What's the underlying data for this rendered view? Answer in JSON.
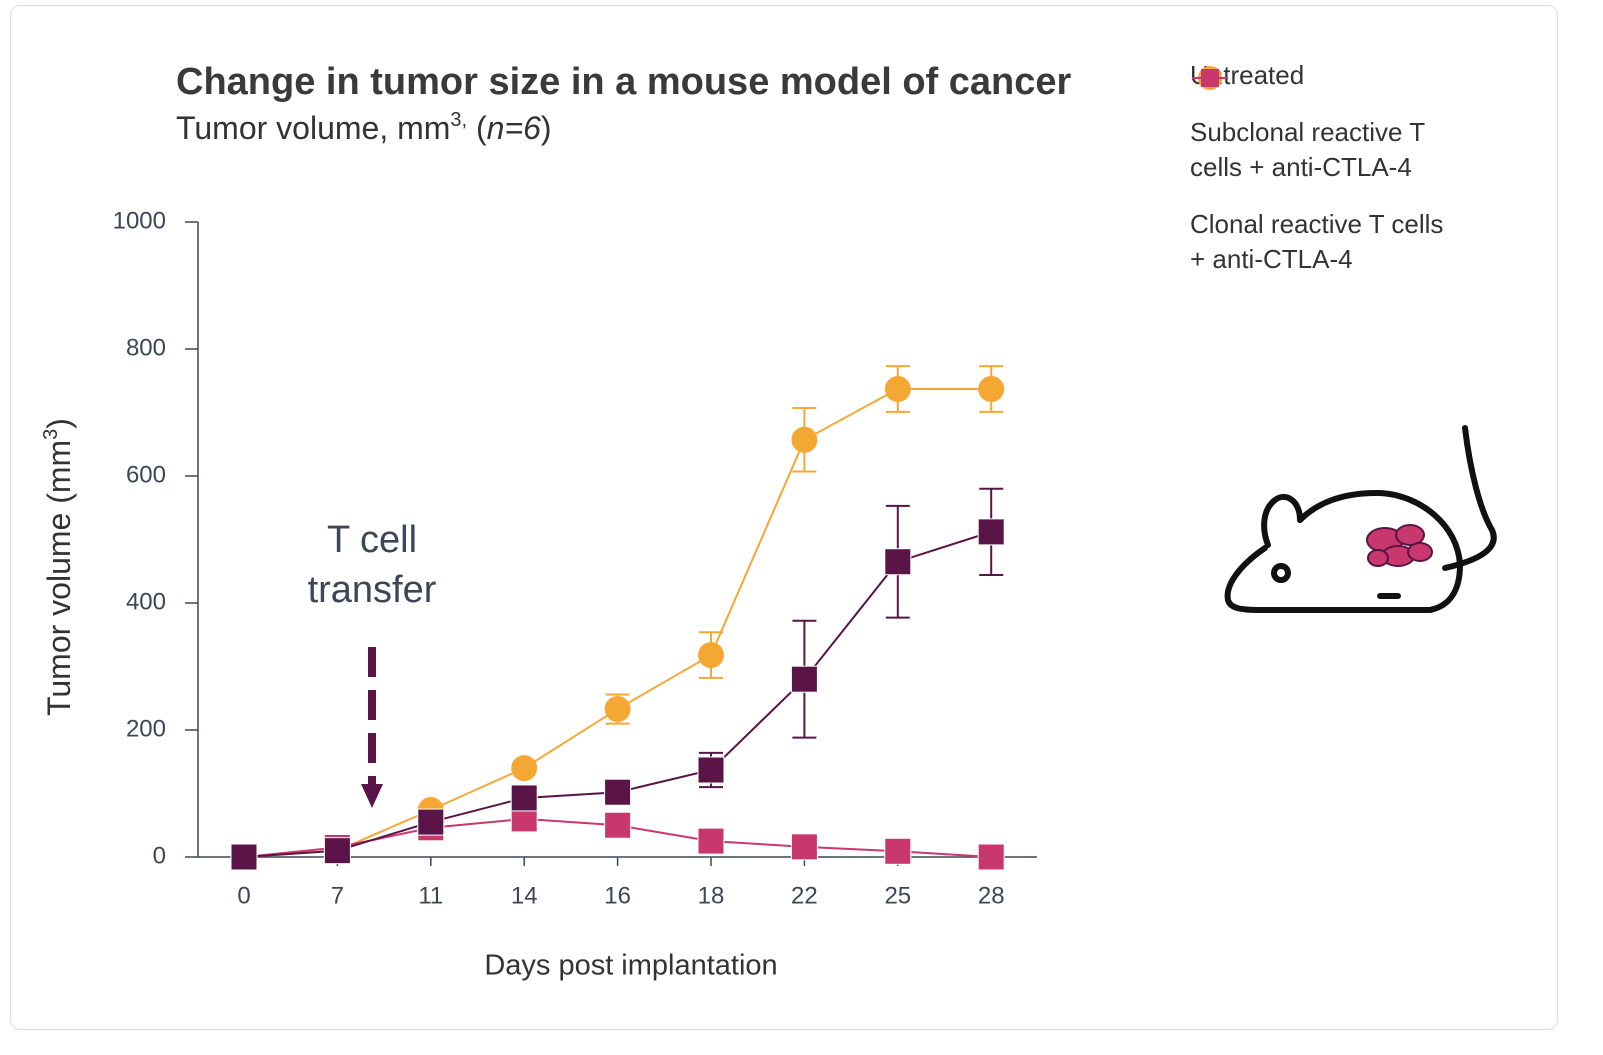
{
  "chart_data": {
    "type": "line",
    "title": "Change in tumor size in a mouse model of cancer",
    "subtitle_parts": [
      "Tumor volume, mm",
      "3,",
      " (",
      "n=6",
      ")"
    ],
    "y_label_parts": [
      "Tumor volume (mm",
      "3",
      ")"
    ],
    "x_label": "Days post implantation",
    "annotation_lines": [
      "T cell",
      "transfer"
    ],
    "categories": [
      "0",
      "7",
      "11",
      "14",
      "16",
      "18",
      "22",
      "25",
      "28"
    ],
    "ylim": [
      0,
      1000
    ],
    "yticks": [
      0,
      200,
      400,
      600,
      800,
      1000
    ],
    "legend": "top-right",
    "series": [
      {
        "name": "Untreated",
        "color": "#f5a733",
        "marker": "circle",
        "values": [
          0,
          10,
          74,
          140,
          233,
          318,
          657,
          737,
          737
        ],
        "errors": [
          null,
          null,
          null,
          null,
          23,
          36,
          50,
          36,
          36
        ]
      },
      {
        "name": "Clonal reactive T cells + anti-CTLA-4",
        "color": "#c9386c",
        "marker": "square",
        "values": [
          0,
          15,
          46,
          60,
          50,
          25,
          16,
          9,
          0
        ],
        "errors": [
          null,
          null,
          null,
          null,
          null,
          null,
          null,
          null,
          null
        ]
      },
      {
        "name": "Subclonal reactive T cells + anti-CTLA-4",
        "color": "#5a1447",
        "marker": "square",
        "values": [
          0,
          10,
          55,
          93,
          102,
          137,
          280,
          465,
          512
        ],
        "errors": [
          null,
          null,
          null,
          null,
          null,
          27,
          92,
          88,
          68
        ]
      }
    ]
  }
}
